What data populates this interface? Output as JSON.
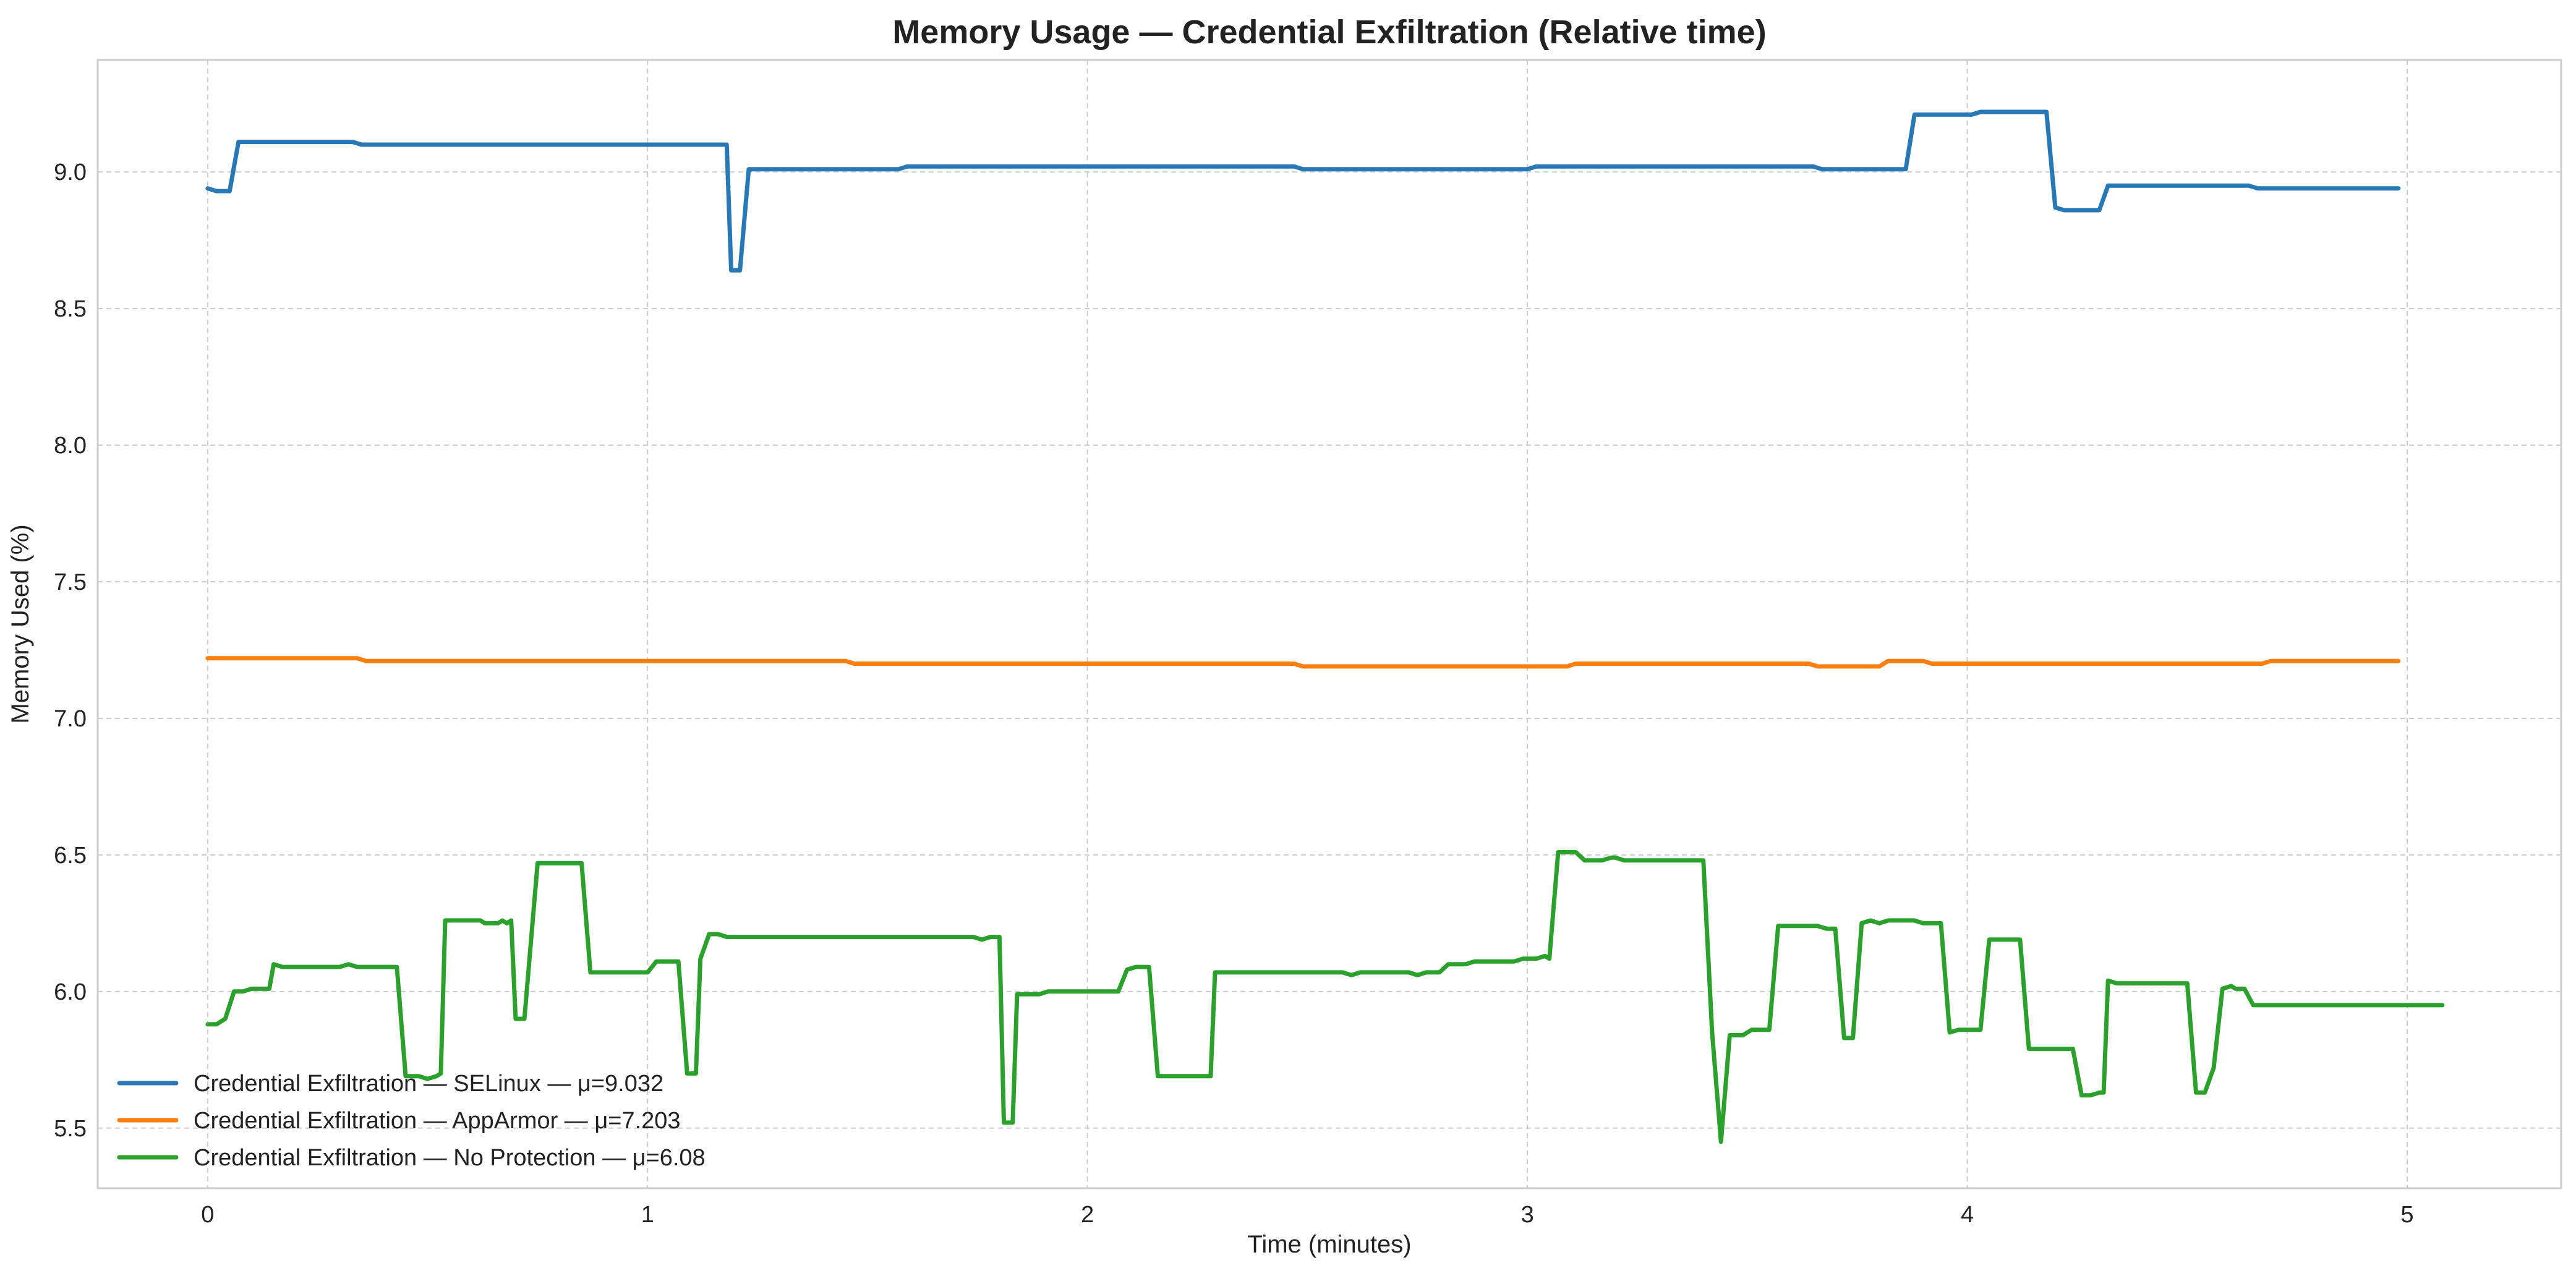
{
  "chart_data": {
    "type": "line",
    "title": "Memory Usage — Credential Exfiltration (Relative time)",
    "xlabel": "Time (minutes)",
    "ylabel": "Memory Used (%)",
    "xlim": [
      -0.25,
      5.35
    ],
    "ylim": [
      5.28,
      9.41
    ],
    "x_ticks": [
      0,
      1,
      2,
      3,
      4,
      5
    ],
    "y_ticks": [
      5.5,
      6.0,
      6.5,
      7.0,
      7.5,
      8.0,
      8.5,
      9.0
    ],
    "grid": true,
    "legend_position": "lower-left",
    "series": [
      {
        "name": "Credential Exfiltration — SELinux — μ=9.032",
        "color": "#2878b5",
        "points": [
          [
            0,
            8.94
          ],
          [
            0.02,
            8.93
          ],
          [
            0.05,
            8.93
          ],
          [
            0.07,
            9.11
          ],
          [
            0.33,
            9.11
          ],
          [
            0.35,
            9.1
          ],
          [
            1.18,
            9.1
          ],
          [
            1.19,
            8.64
          ],
          [
            1.21,
            8.64
          ],
          [
            1.23,
            9.01
          ],
          [
            1.57,
            9.01
          ],
          [
            1.59,
            9.02
          ],
          [
            2.47,
            9.02
          ],
          [
            2.49,
            9.01
          ],
          [
            3.0,
            9.01
          ],
          [
            3.02,
            9.02
          ],
          [
            3.65,
            9.02
          ],
          [
            3.67,
            9.01
          ],
          [
            3.86,
            9.01
          ],
          [
            3.88,
            9.21
          ],
          [
            4.01,
            9.21
          ],
          [
            4.03,
            9.22
          ],
          [
            4.18,
            9.22
          ],
          [
            4.2,
            8.87
          ],
          [
            4.22,
            8.86
          ],
          [
            4.3,
            8.86
          ],
          [
            4.32,
            8.95
          ],
          [
            4.64,
            8.95
          ],
          [
            4.66,
            8.94
          ],
          [
            4.98,
            8.94
          ]
        ]
      },
      {
        "name": "Credential Exfiltration — AppArmor — μ=7.203",
        "color": "#ff7f0e",
        "points": [
          [
            0,
            7.22
          ],
          [
            0.34,
            7.22
          ],
          [
            0.36,
            7.21
          ],
          [
            1.45,
            7.21
          ],
          [
            1.47,
            7.2
          ],
          [
            2.47,
            7.2
          ],
          [
            2.49,
            7.19
          ],
          [
            3.09,
            7.19
          ],
          [
            3.11,
            7.2
          ],
          [
            3.64,
            7.2
          ],
          [
            3.66,
            7.19
          ],
          [
            3.8,
            7.19
          ],
          [
            3.82,
            7.21
          ],
          [
            3.9,
            7.21
          ],
          [
            3.92,
            7.2
          ],
          [
            4.67,
            7.2
          ],
          [
            4.69,
            7.21
          ],
          [
            4.98,
            7.21
          ]
        ]
      },
      {
        "name": "Credential Exfiltration — No Protection — μ=6.08",
        "color": "#2ca02c",
        "points": [
          [
            0,
            5.88
          ],
          [
            0.02,
            5.88
          ],
          [
            0.04,
            5.9
          ],
          [
            0.06,
            6.0
          ],
          [
            0.08,
            6.0
          ],
          [
            0.1,
            6.01
          ],
          [
            0.14,
            6.01
          ],
          [
            0.15,
            6.1
          ],
          [
            0.17,
            6.09
          ],
          [
            0.3,
            6.09
          ],
          [
            0.32,
            6.1
          ],
          [
            0.34,
            6.09
          ],
          [
            0.43,
            6.09
          ],
          [
            0.45,
            5.69
          ],
          [
            0.48,
            5.69
          ],
          [
            0.5,
            5.68
          ],
          [
            0.52,
            5.69
          ],
          [
            0.53,
            5.7
          ],
          [
            0.54,
            6.26
          ],
          [
            0.62,
            6.26
          ],
          [
            0.63,
            6.25
          ],
          [
            0.66,
            6.25
          ],
          [
            0.67,
            6.26
          ],
          [
            0.68,
            6.25
          ],
          [
            0.69,
            6.26
          ],
          [
            0.7,
            5.9
          ],
          [
            0.72,
            5.9
          ],
          [
            0.75,
            6.47
          ],
          [
            0.85,
            6.47
          ],
          [
            0.87,
            6.07
          ],
          [
            1.0,
            6.07
          ],
          [
            1.02,
            6.11
          ],
          [
            1.07,
            6.11
          ],
          [
            1.09,
            5.7
          ],
          [
            1.11,
            5.7
          ],
          [
            1.12,
            6.12
          ],
          [
            1.14,
            6.21
          ],
          [
            1.16,
            6.21
          ],
          [
            1.18,
            6.2
          ],
          [
            1.74,
            6.2
          ],
          [
            1.76,
            6.19
          ],
          [
            1.78,
            6.2
          ],
          [
            1.8,
            6.2
          ],
          [
            1.81,
            5.52
          ],
          [
            1.83,
            5.52
          ],
          [
            1.84,
            5.99
          ],
          [
            1.89,
            5.99
          ],
          [
            1.91,
            6.0
          ],
          [
            2.07,
            6.0
          ],
          [
            2.09,
            6.08
          ],
          [
            2.11,
            6.09
          ],
          [
            2.14,
            6.09
          ],
          [
            2.16,
            5.69
          ],
          [
            2.28,
            5.69
          ],
          [
            2.29,
            6.07
          ],
          [
            2.58,
            6.07
          ],
          [
            2.6,
            6.06
          ],
          [
            2.62,
            6.07
          ],
          [
            2.73,
            6.07
          ],
          [
            2.75,
            6.06
          ],
          [
            2.77,
            6.07
          ],
          [
            2.8,
            6.07
          ],
          [
            2.82,
            6.1
          ],
          [
            2.86,
            6.1
          ],
          [
            2.88,
            6.11
          ],
          [
            2.97,
            6.11
          ],
          [
            2.99,
            6.12
          ],
          [
            3.02,
            6.12
          ],
          [
            3.04,
            6.13
          ],
          [
            3.05,
            6.12
          ],
          [
            3.07,
            6.51
          ],
          [
            3.11,
            6.51
          ],
          [
            3.13,
            6.48
          ],
          [
            3.17,
            6.48
          ],
          [
            3.19,
            6.49
          ],
          [
            3.2,
            6.49
          ],
          [
            3.22,
            6.48
          ],
          [
            3.4,
            6.48
          ],
          [
            3.42,
            5.85
          ],
          [
            3.44,
            5.45
          ],
          [
            3.46,
            5.84
          ],
          [
            3.49,
            5.84
          ],
          [
            3.51,
            5.86
          ],
          [
            3.55,
            5.86
          ],
          [
            3.57,
            6.24
          ],
          [
            3.66,
            6.24
          ],
          [
            3.68,
            6.23
          ],
          [
            3.7,
            6.23
          ],
          [
            3.72,
            5.83
          ],
          [
            3.74,
            5.83
          ],
          [
            3.76,
            6.25
          ],
          [
            3.78,
            6.26
          ],
          [
            3.8,
            6.25
          ],
          [
            3.82,
            6.26
          ],
          [
            3.88,
            6.26
          ],
          [
            3.9,
            6.25
          ],
          [
            3.94,
            6.25
          ],
          [
            3.96,
            5.85
          ],
          [
            3.98,
            5.86
          ],
          [
            4.03,
            5.86
          ],
          [
            4.05,
            6.19
          ],
          [
            4.12,
            6.19
          ],
          [
            4.14,
            5.79
          ],
          [
            4.24,
            5.79
          ],
          [
            4.26,
            5.62
          ],
          [
            4.28,
            5.62
          ],
          [
            4.3,
            5.63
          ],
          [
            4.31,
            5.63
          ],
          [
            4.32,
            6.04
          ],
          [
            4.34,
            6.03
          ],
          [
            4.5,
            6.03
          ],
          [
            4.52,
            5.63
          ],
          [
            4.54,
            5.63
          ],
          [
            4.56,
            5.72
          ],
          [
            4.58,
            6.01
          ],
          [
            4.6,
            6.02
          ],
          [
            4.61,
            6.01
          ],
          [
            4.63,
            6.01
          ],
          [
            4.65,
            5.95
          ],
          [
            5.08,
            5.95
          ]
        ]
      }
    ]
  }
}
